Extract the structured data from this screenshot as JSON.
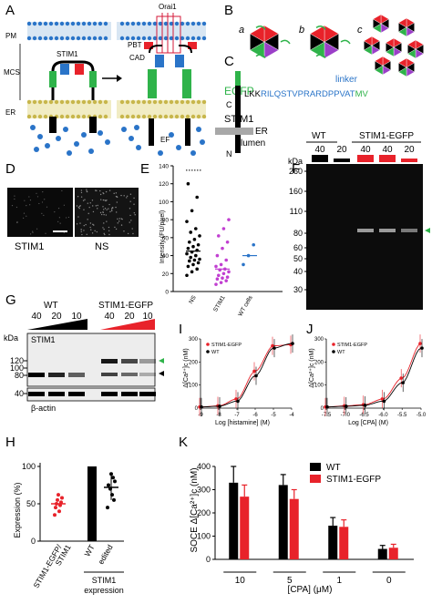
{
  "panels": [
    "A",
    "B",
    "C",
    "D",
    "E",
    "F",
    "G",
    "H",
    "I",
    "J",
    "K"
  ],
  "panel_a": {
    "orai_label": "Orai1",
    "pm_label": "PM",
    "mcs_label": "MCS",
    "er_label": "ER",
    "stim_label": "STIM1",
    "pbt_label": "PBT",
    "cad_label": "CAD",
    "ef_label": "EF"
  },
  "panel_b": {
    "sub_labels": [
      "a",
      "b",
      "c"
    ]
  },
  "panel_c": {
    "egfp_label": "EGFP",
    "linker_label": "linker",
    "seq_prefix": "LKK",
    "seq_blue": "RILQSTVPRARDPPVAT",
    "seq_green": "MV",
    "c_label": "C",
    "stim_label": "STIM1",
    "er_label": "ER",
    "lumen_label": "lumen",
    "n_label": "N"
  },
  "panel_d": {
    "labels": [
      "STIM1",
      "NS"
    ]
  },
  "panel_e": {
    "y_label": "Intensity (FU/pixel)",
    "y_ticks": [
      "0",
      "20",
      "40",
      "60",
      "80",
      "100",
      "120",
      "140"
    ],
    "x_labels": [
      "NS",
      "STIM1",
      "WT cells"
    ]
  },
  "panel_f": {
    "kda": "kDa",
    "wt": "WT",
    "stim_egfp": "STIM1-EGFP",
    "lanes": [
      "40",
      "20",
      "40",
      "40",
      "20"
    ],
    "markers": [
      "260",
      "160",
      "110",
      "80",
      "60",
      "50",
      "40",
      "30"
    ]
  },
  "panel_g": {
    "wt": "WT",
    "stim_egfp": "STIM1-EGFP",
    "lanes": [
      "40",
      "20",
      "10",
      "40",
      "20",
      "10"
    ],
    "kda": "kDa",
    "stim_label": "STIM1",
    "markers": [
      "120",
      "100",
      "80",
      "40"
    ],
    "actin_label": "β-actin"
  },
  "panel_h": {
    "y_label": "Expression (%)",
    "y_ticks": [
      "0",
      "50",
      "100"
    ],
    "x_labels": [
      "STIM1-EGFP/\nSTIM1",
      "WT",
      "edited"
    ],
    "group_label": "STIM1\nexpression"
  },
  "panel_i": {
    "y_label": "Δ[Ca²⁺]c (nM)",
    "x_label": "Log [histamine] (M)",
    "legend": [
      "STIM1-EGFP",
      "WT"
    ],
    "y_ticks": [
      "0",
      "100",
      "200",
      "300"
    ],
    "x_ticks": [
      "-9",
      "-8",
      "-7",
      "-6",
      "-5",
      "-4"
    ]
  },
  "panel_j": {
    "y_label": "Δ[Ca²⁺]c (nM)",
    "x_label": "Log [CPA] (M)",
    "legend": [
      "STIM1-EGFP",
      "WT"
    ],
    "y_ticks": [
      "0",
      "100",
      "200",
      "300"
    ],
    "x_ticks": [
      "-7.5",
      "-7.0",
      "-6.5",
      "-6.0",
      "-5.5",
      "-5.0"
    ]
  },
  "panel_k": {
    "y_label": "SOCE Δ[Ca²⁺]c (nM)",
    "x_label": "[CPA] (μM)",
    "legend": [
      "WT",
      "STIM1-EGFP"
    ],
    "y_ticks": [
      "0",
      "100",
      "200",
      "300",
      "400"
    ],
    "categories": [
      "10",
      "5",
      "1",
      "0"
    ]
  },
  "colors": {
    "red": "#e8222a",
    "green": "#2fb34a",
    "blue": "#2a74c8",
    "black": "#000000",
    "purple": "#c13fd1"
  },
  "chart_data": [
    {
      "type": "scatter",
      "panel": "E",
      "ylabel": "Intensity (FU/pixel)",
      "ylim": [
        0,
        140
      ],
      "categories": [
        "NS",
        "STIM1",
        "WT cells"
      ],
      "series": [
        {
          "name": "NS",
          "values": [
            18,
            22,
            25,
            28,
            30,
            32,
            34,
            35,
            36,
            38,
            40,
            42,
            44,
            46,
            48,
            50,
            52,
            55,
            58,
            62,
            66,
            70,
            78,
            90,
            105,
            120
          ],
          "mean": 45
        },
        {
          "name": "STIM1",
          "values": [
            8,
            10,
            12,
            14,
            15,
            16,
            18,
            20,
            22,
            24,
            25,
            28,
            30,
            35,
            40,
            48,
            55,
            62,
            70,
            80
          ],
          "mean": 25
        },
        {
          "name": "WT cells",
          "values": [
            30,
            40,
            52
          ],
          "mean": 40
        }
      ]
    },
    {
      "type": "scatter",
      "panel": "H",
      "ylabel": "Expression (%)",
      "ylim": [
        0,
        100
      ],
      "categories": [
        "STIM1-EGFP/STIM1",
        "WT",
        "edited"
      ],
      "series": [
        {
          "name": "STIM1-EGFP/STIM1",
          "values": [
            35,
            40,
            45,
            48,
            50,
            52,
            55,
            58,
            62
          ],
          "mean": 50
        },
        {
          "name": "WT",
          "values": [
            100
          ],
          "mean": 100
        },
        {
          "name": "edited",
          "values": [
            45,
            55,
            62,
            70,
            75,
            80,
            85,
            90
          ],
          "mean": 72
        }
      ]
    },
    {
      "type": "line",
      "panel": "I",
      "xlabel": "Log [histamine] (M)",
      "ylabel": "Δ[Ca²⁺]c (nM)",
      "xlim": [
        -9,
        -4
      ],
      "ylim": [
        0,
        300
      ],
      "x": [
        -9,
        -8,
        -7,
        -6,
        -5,
        -4
      ],
      "series": [
        {
          "name": "STIM1-EGFP",
          "values": [
            5,
            10,
            40,
            160,
            270,
            275
          ]
        },
        {
          "name": "WT",
          "values": [
            5,
            8,
            30,
            140,
            260,
            280
          ]
        }
      ]
    },
    {
      "type": "line",
      "panel": "J",
      "xlabel": "Log [CPA] (M)",
      "ylabel": "Δ[Ca²⁺]c (nM)",
      "xlim": [
        -7.5,
        -5.0
      ],
      "ylim": [
        0,
        300
      ],
      "x": [
        -7.5,
        -7.0,
        -6.5,
        -6.0,
        -5.5,
        -5.0
      ],
      "series": [
        {
          "name": "STIM1-EGFP",
          "values": [
            5,
            10,
            15,
            40,
            130,
            280
          ]
        },
        {
          "name": "WT",
          "values": [
            5,
            8,
            12,
            30,
            110,
            260
          ]
        }
      ]
    },
    {
      "type": "bar",
      "panel": "K",
      "xlabel": "[CPA] (μM)",
      "ylabel": "SOCE Δ[Ca²⁺]c (nM)",
      "ylim": [
        0,
        400
      ],
      "categories": [
        "10",
        "5",
        "1",
        "0"
      ],
      "series": [
        {
          "name": "WT",
          "values": [
            330,
            320,
            145,
            45
          ],
          "errors": [
            70,
            45,
            35,
            15
          ]
        },
        {
          "name": "STIM1-EGFP",
          "values": [
            270,
            260,
            140,
            50
          ],
          "errors": [
            50,
            40,
            30,
            15
          ]
        }
      ]
    }
  ]
}
